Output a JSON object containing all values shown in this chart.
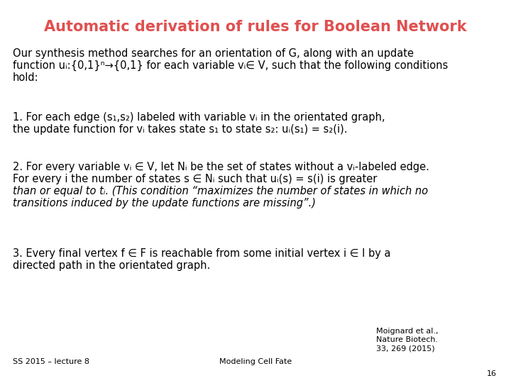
{
  "title": "Automatic derivation of rules for Boolean Network",
  "title_color": "#E05050",
  "background_color": "#FFFFFF",
  "body_text_color": "#000000",
  "footer_left": "SS 2015 – lecture 8",
  "footer_center": "Modeling Cell Fate",
  "footer_right_line1": "Moignard et al.,",
  "footer_right_line2": "Nature Biotech.",
  "footer_right_line3": "33, 269 (2015)",
  "footer_page": "16",
  "intro_line1": "Our synthesis method searches for an orientation of G, along with an update",
  "intro_line2": "function uᵢ:{0,1}ⁿ→{0,1} for each variable vᵢ∈ V, such that the following conditions",
  "intro_line3": "hold:",
  "point1_line1": "1. For each edge (s₁,s₂) labeled with variable vᵢ in the orientated graph,",
  "point1_line2": "the update function for vᵢ takes state s₁ to state s₂: uᵢ(s₁) = s₂(i).",
  "point2_line1": "2. For every variable vᵢ ∈ V, let Nᵢ be the set of states without a vᵢ-labeled edge.",
  "point2_line2": "For every i the number of states s ∈ Nᵢ such that uᵢ(s) = s(i) is greater",
  "point2_line3": "than or equal to tᵢ. (This condition “maximizes the number of states in which no",
  "point2_line4": "transitions induced by the update functions are missing”.)",
  "point3_line1": "3. Every final vertex f ∈ F is reachable from some initial vertex i ∈ I by a",
  "point3_line2": "directed path in the orientated graph.",
  "font_size_title": 15,
  "font_size_body": 10.5,
  "font_size_footer": 8
}
